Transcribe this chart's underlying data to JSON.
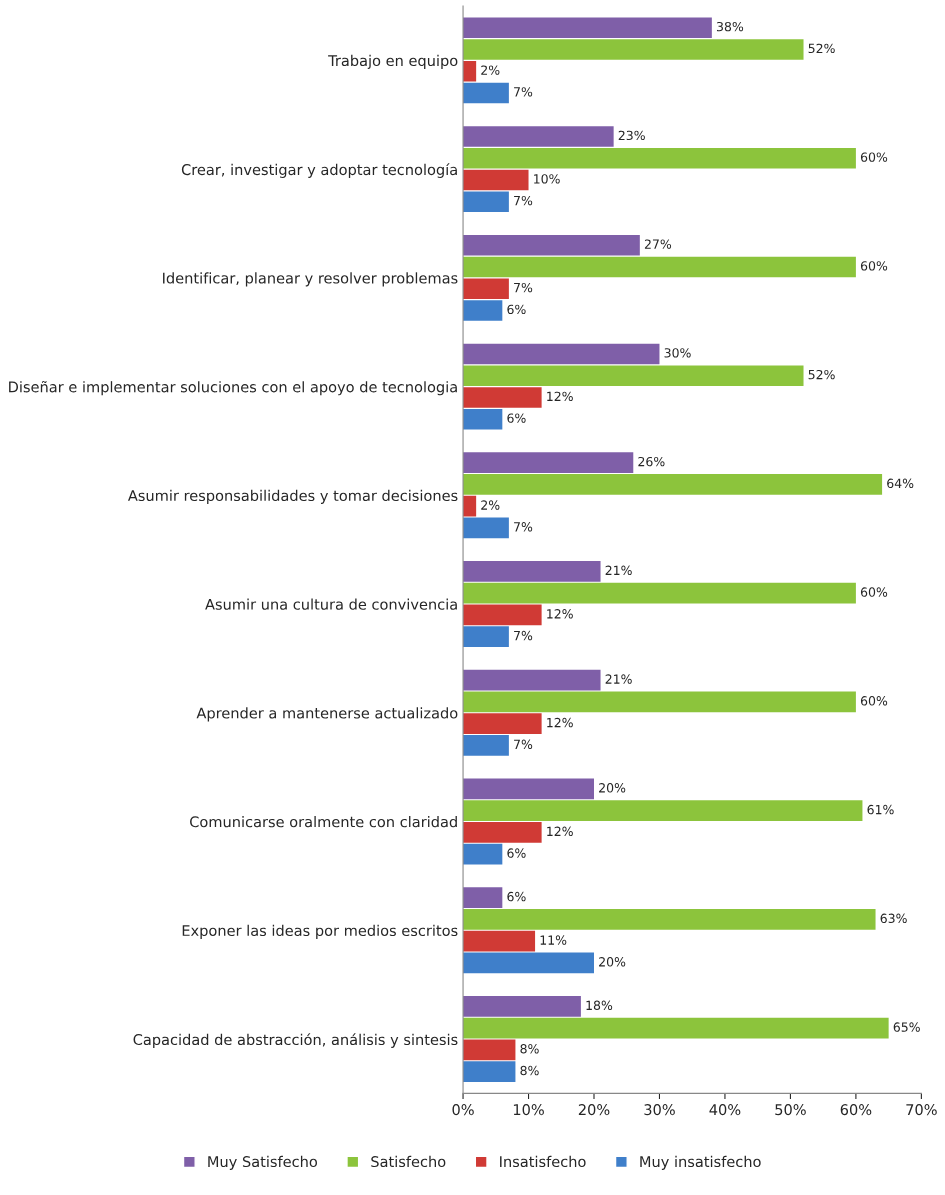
{
  "chart_data": {
    "type": "bar",
    "orientation": "horizontal",
    "categories": [
      "Trabajo en equipo",
      "Crear, investigar y adoptar tecnología",
      "Identificar, planear y resolver problemas",
      "Diseñar e implementar soluciones con el apoyo de tecnologia",
      "Asumir responsabilidades y tomar decisiones",
      "Asumir una cultura de convivencia",
      "Aprender a mantenerse actualizado",
      "Comunicarse oralmente con claridad",
      "Exponer las ideas por medios escritos",
      "Capacidad de abstracción, análisis y sintesis"
    ],
    "series": [
      {
        "name": "Muy Satisfecho",
        "color": "#7f5fa8",
        "values": [
          38,
          23,
          27,
          30,
          26,
          21,
          21,
          20,
          6,
          18
        ],
        "value_labels": [
          "38%",
          "23%",
          "27%",
          "30%",
          "26%",
          "21%",
          "21%",
          "20%",
          "6%",
          "18%"
        ]
      },
      {
        "name": "Satisfecho",
        "color": "#8cc43c",
        "values": [
          52,
          60,
          60,
          52,
          64,
          60,
          60,
          61,
          63,
          65
        ],
        "value_labels": [
          "52%",
          "60%",
          "60%",
          "52%",
          "64%",
          "60%",
          "60%",
          "61%",
          "63%",
          "65%"
        ]
      },
      {
        "name": "Insatisfecho",
        "color": "#d03a35",
        "values": [
          2,
          10,
          7,
          12,
          2,
          12,
          12,
          12,
          11,
          8
        ],
        "value_labels": [
          "2%",
          "10%",
          "7%",
          "12%",
          "2%",
          "12%",
          "12%",
          "12%",
          "11%",
          "8%"
        ]
      },
      {
        "name": "Muy insatisfecho",
        "color": "#3f7fca",
        "values": [
          7,
          7,
          6,
          6,
          7,
          7,
          7,
          6,
          20,
          8
        ],
        "value_labels": [
          "7%",
          "7%",
          "6%",
          "6%",
          "7%",
          "7%",
          "7%",
          "6%",
          "20%",
          "8%"
        ]
      }
    ],
    "xlim": [
      0,
      70
    ],
    "xticks": [
      {
        "value": 0,
        "label": "0%"
      },
      {
        "value": 10,
        "label": "10%"
      },
      {
        "value": 20,
        "label": "20%"
      },
      {
        "value": 30,
        "label": "30%"
      },
      {
        "value": 40,
        "label": "40%"
      },
      {
        "value": 50,
        "label": "50%"
      },
      {
        "value": 60,
        "label": "60%"
      },
      {
        "value": 70,
        "label": "70%"
      }
    ],
    "grid": false,
    "legend": "bottom"
  }
}
